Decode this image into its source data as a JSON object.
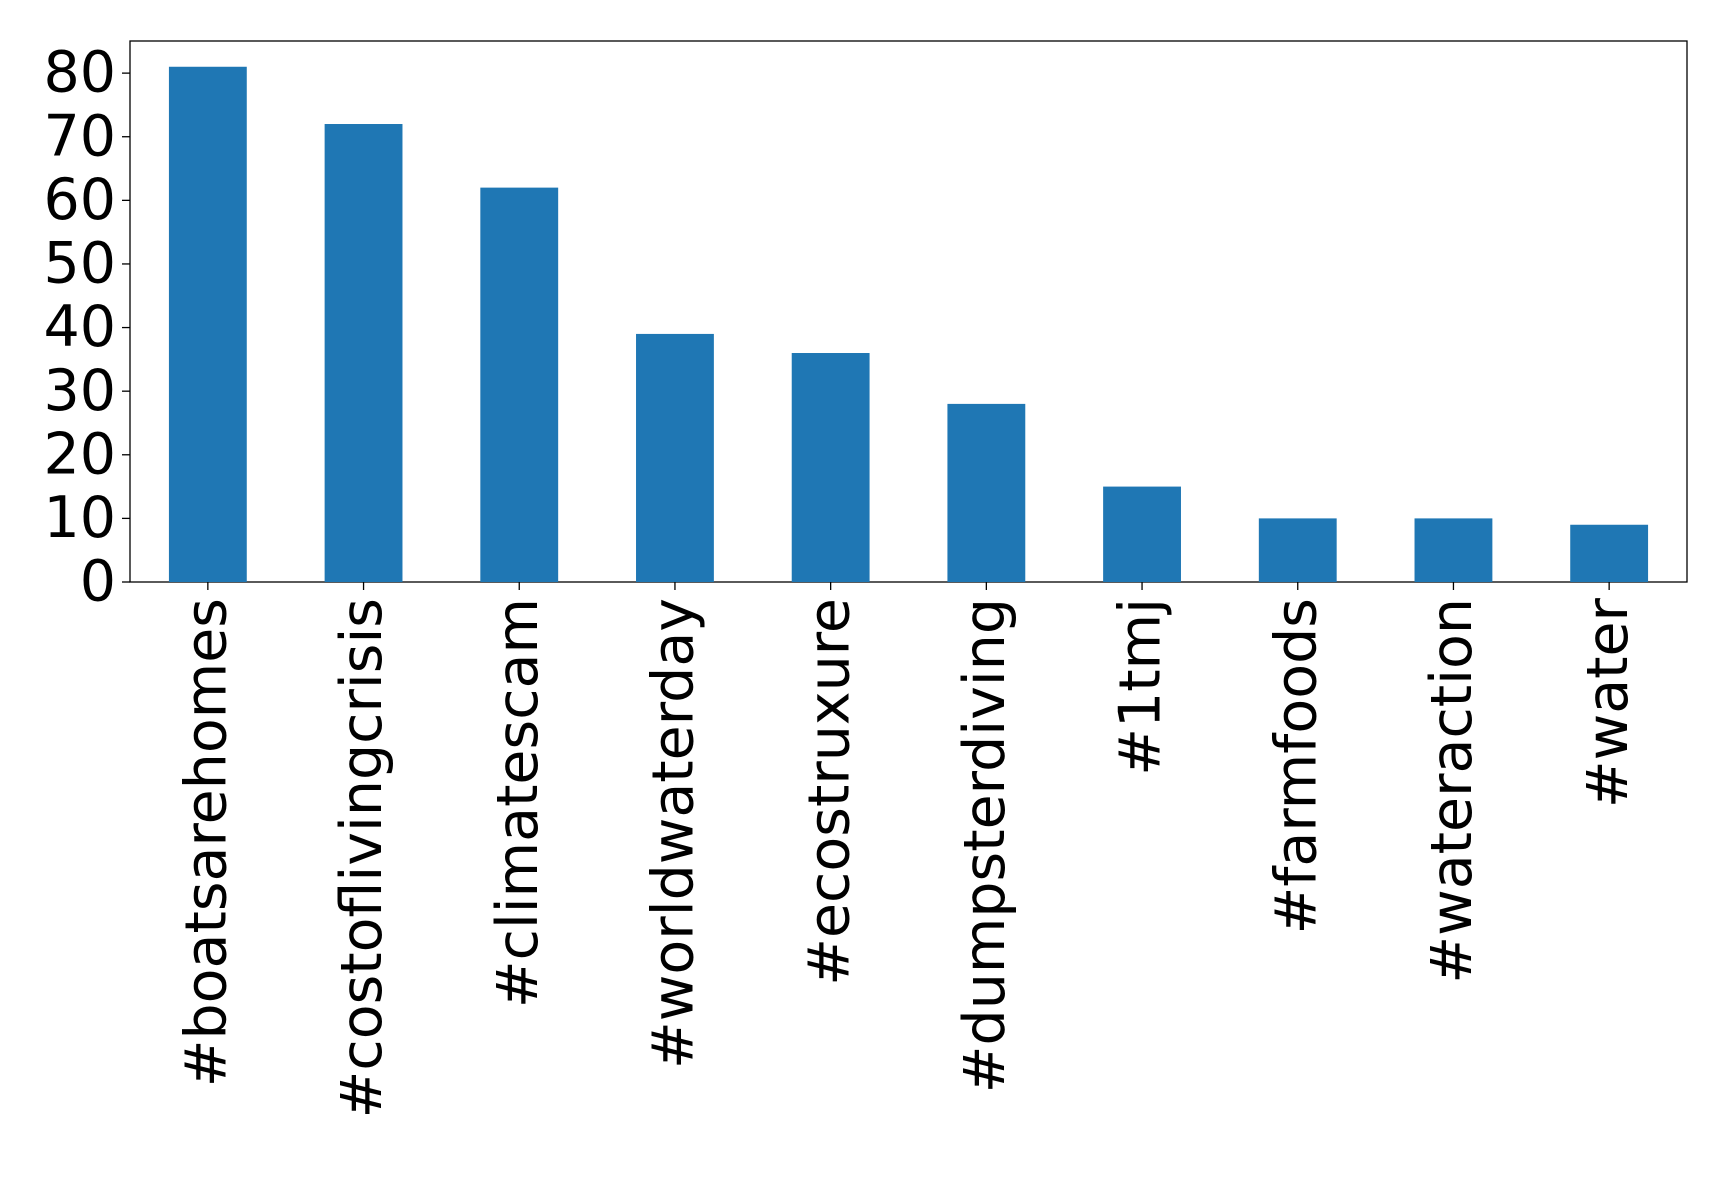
{
  "chart_data": {
    "type": "bar",
    "categories": [
      "#boatsarehomes",
      "#costoflivingcrisis",
      "#climatescam",
      "#worldwaterday",
      "#ecostruxure",
      "#dumpsterdiving",
      "#1tmj",
      "#farmfoods",
      "#wateraction",
      "#water"
    ],
    "values": [
      81,
      72,
      62,
      39,
      36,
      28,
      15,
      10,
      10,
      9
    ],
    "color": "#1f77b4",
    "ylim": [
      0,
      85.05
    ],
    "yticks": [
      0,
      10,
      20,
      30,
      40,
      50,
      60,
      70,
      80
    ],
    "grid": false
  }
}
